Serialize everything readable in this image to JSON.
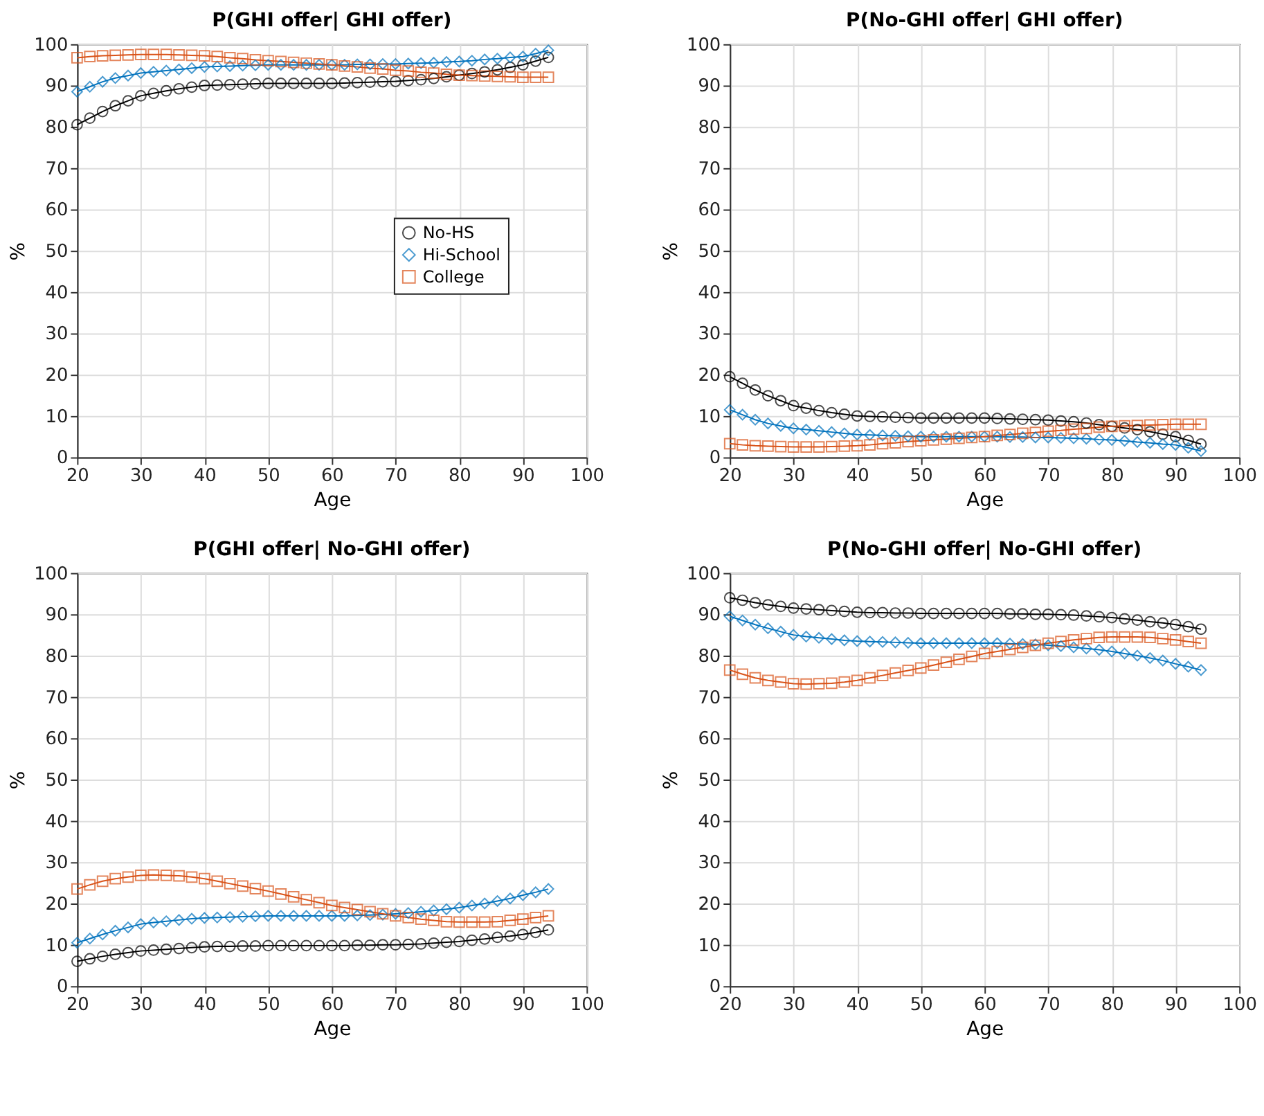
{
  "chart_data": [
    {
      "type": "line",
      "title": "P(GHI offer| GHI offer)",
      "xlabel": "Age",
      "ylabel": "%",
      "xlim": [
        20,
        100
      ],
      "xticks": [
        20,
        30,
        40,
        50,
        60,
        70,
        80,
        90,
        100
      ],
      "ylim": [
        0,
        100
      ],
      "yticks": [
        0,
        10,
        20,
        30,
        40,
        50,
        60,
        70,
        80,
        90,
        100
      ],
      "grid": true,
      "legend": "right",
      "line_style": "solid",
      "x": [
        20,
        22,
        24,
        26,
        28,
        30,
        32,
        34,
        36,
        38,
        40,
        42,
        44,
        46,
        48,
        50,
        52,
        54,
        56,
        58,
        60,
        62,
        64,
        66,
        68,
        70,
        72,
        74,
        76,
        78,
        80,
        82,
        84,
        86,
        88,
        90,
        92,
        94
      ],
      "series": [
        {
          "name": "No-HS",
          "color": "#000000",
          "marker": "circle",
          "values": [
            80.5,
            82.1,
            83.7,
            85.1,
            86.3,
            87.5,
            88.1,
            88.7,
            89.2,
            89.6,
            90,
            90.1,
            90.2,
            90.3,
            90.4,
            90.5,
            90.5,
            90.5,
            90.5,
            90.5,
            90.5,
            90.6,
            90.7,
            90.8,
            90.9,
            91,
            91.2,
            91.4,
            91.7,
            92.1,
            92.5,
            92.9,
            93.3,
            93.8,
            94.4,
            95,
            95.9,
            96.8
          ]
        },
        {
          "name": "Hi-School",
          "color": "#0072bd",
          "marker": "diamond",
          "values": [
            88.5,
            89.7,
            90.9,
            91.8,
            92.4,
            93,
            93.3,
            93.6,
            93.9,
            94.2,
            94.5,
            94.6,
            94.7,
            94.8,
            94.9,
            95,
            95,
            95,
            95,
            95,
            95,
            95,
            95.1,
            95.1,
            95.2,
            95.2,
            95.3,
            95.4,
            95.5,
            95.7,
            95.8,
            96,
            96.3,
            96.5,
            96.8,
            97,
            97.7,
            98.5
          ]
        },
        {
          "name": "College",
          "color": "#d95319",
          "marker": "square",
          "values": [
            96.7,
            97,
            97.2,
            97.3,
            97.4,
            97.5,
            97.5,
            97.5,
            97.4,
            97.3,
            97.2,
            97,
            96.7,
            96.5,
            96.2,
            96,
            95.8,
            95.6,
            95.4,
            95.2,
            95,
            94.7,
            94.5,
            94.2,
            94,
            93.7,
            93.5,
            93.2,
            93,
            92.7,
            92.5,
            92.4,
            92.3,
            92.2,
            92.1,
            92,
            92,
            92
          ]
        }
      ]
    },
    {
      "type": "line",
      "title": "P(No-GHI offer| GHI offer)",
      "xlabel": "Age",
      "ylabel": "%",
      "xlim": [
        20,
        100
      ],
      "xticks": [
        20,
        30,
        40,
        50,
        60,
        70,
        80,
        90,
        100
      ],
      "ylim": [
        0,
        100
      ],
      "yticks": [
        0,
        10,
        20,
        30,
        40,
        50,
        60,
        70,
        80,
        90,
        100
      ],
      "grid": true,
      "legend": false,
      "line_style": "solid",
      "x": [
        20,
        22,
        24,
        26,
        28,
        30,
        32,
        34,
        36,
        38,
        40,
        42,
        44,
        46,
        48,
        50,
        52,
        54,
        56,
        58,
        60,
        62,
        64,
        66,
        68,
        70,
        72,
        74,
        76,
        78,
        80,
        82,
        84,
        86,
        88,
        90,
        92,
        94
      ],
      "series": [
        {
          "color": "#000000",
          "marker": "circle",
          "values": [
            19.5,
            17.9,
            16.3,
            14.9,
            13.7,
            12.5,
            11.9,
            11.3,
            10.8,
            10.4,
            10,
            9.9,
            9.8,
            9.7,
            9.6,
            9.5,
            9.5,
            9.5,
            9.5,
            9.5,
            9.5,
            9.4,
            9.3,
            9.2,
            9.1,
            9,
            8.8,
            8.6,
            8.3,
            7.9,
            7.5,
            7.1,
            6.7,
            6.2,
            5.6,
            5,
            4.1,
            3.2
          ]
        },
        {
          "color": "#0072bd",
          "marker": "diamond",
          "values": [
            11.5,
            10.3,
            9.1,
            8.2,
            7.6,
            7,
            6.7,
            6.4,
            6.1,
            5.8,
            5.5,
            5.4,
            5.3,
            5.2,
            5.1,
            5,
            5,
            5,
            5,
            5,
            5,
            5,
            4.9,
            4.9,
            4.8,
            4.8,
            4.7,
            4.6,
            4.5,
            4.3,
            4.2,
            4,
            3.7,
            3.5,
            3.2,
            3,
            2.3,
            1.5
          ]
        },
        {
          "color": "#d95319",
          "marker": "square",
          "values": [
            3.3,
            3,
            2.8,
            2.7,
            2.6,
            2.5,
            2.5,
            2.5,
            2.6,
            2.7,
            2.8,
            3,
            3.3,
            3.5,
            3.8,
            4,
            4.2,
            4.4,
            4.6,
            4.8,
            5,
            5.3,
            5.5,
            5.8,
            6,
            6.3,
            6.5,
            6.8,
            7,
            7.3,
            7.5,
            7.6,
            7.7,
            7.8,
            7.9,
            8,
            8,
            8
          ]
        }
      ]
    },
    {
      "type": "line",
      "title": "P(GHI offer| No-GHI offer)",
      "xlabel": "Age",
      "ylabel": "%",
      "xlim": [
        20,
        100
      ],
      "xticks": [
        20,
        30,
        40,
        50,
        60,
        70,
        80,
        90,
        100
      ],
      "ylim": [
        0,
        100
      ],
      "yticks": [
        0,
        10,
        20,
        30,
        40,
        50,
        60,
        70,
        80,
        90,
        100
      ],
      "grid": true,
      "legend": false,
      "line_style": "solid",
      "x": [
        20,
        22,
        24,
        26,
        28,
        30,
        32,
        34,
        36,
        38,
        40,
        42,
        44,
        46,
        48,
        50,
        52,
        54,
        56,
        58,
        60,
        62,
        64,
        66,
        68,
        70,
        72,
        74,
        76,
        78,
        80,
        82,
        84,
        86,
        88,
        90,
        92,
        94
      ],
      "series": [
        {
          "color": "#000000",
          "marker": "circle",
          "values": [
            6,
            6.6,
            7.2,
            7.7,
            8.1,
            8.5,
            8.7,
            8.9,
            9.1,
            9.3,
            9.5,
            9.6,
            9.6,
            9.7,
            9.7,
            9.8,
            9.8,
            9.8,
            9.8,
            9.8,
            9.8,
            9.8,
            9.9,
            9.9,
            10,
            10,
            10.1,
            10.2,
            10.4,
            10.6,
            10.8,
            11.1,
            11.4,
            11.8,
            12.1,
            12.5,
            13,
            13.6
          ]
        },
        {
          "color": "#0072bd",
          "marker": "diamond",
          "values": [
            10.5,
            11.5,
            12.5,
            13.4,
            14.2,
            15,
            15.4,
            15.7,
            16,
            16.3,
            16.5,
            16.6,
            16.7,
            16.8,
            16.9,
            17,
            17,
            17,
            17,
            17,
            17,
            17,
            17.1,
            17.2,
            17.3,
            17.5,
            17.7,
            18,
            18.3,
            18.6,
            19,
            19.5,
            20,
            20.6,
            21.2,
            22,
            22.7,
            23.5
          ]
        },
        {
          "color": "#d95319",
          "marker": "square",
          "values": [
            23.5,
            24.5,
            25.4,
            26,
            26.4,
            26.8,
            26.9,
            26.8,
            26.7,
            26.4,
            26,
            25.4,
            24.8,
            24.2,
            23.6,
            23,
            22.3,
            21.6,
            20.9,
            20.2,
            19.5,
            19,
            18.5,
            18,
            17.5,
            17,
            16.6,
            16.2,
            15.9,
            15.6,
            15.5,
            15.5,
            15.5,
            15.6,
            15.9,
            16.2,
            16.6,
            17
          ]
        }
      ]
    },
    {
      "type": "line",
      "title": "P(No-GHI offer| No-GHI offer)",
      "xlabel": "Age",
      "ylabel": "%",
      "xlim": [
        20,
        100
      ],
      "xticks": [
        20,
        30,
        40,
        50,
        60,
        70,
        80,
        90,
        100
      ],
      "ylim": [
        0,
        100
      ],
      "yticks": [
        0,
        10,
        20,
        30,
        40,
        50,
        60,
        70,
        80,
        90,
        100
      ],
      "grid": true,
      "legend": false,
      "line_style": "solid",
      "x": [
        20,
        22,
        24,
        26,
        28,
        30,
        32,
        34,
        36,
        38,
        40,
        42,
        44,
        46,
        48,
        50,
        52,
        54,
        56,
        58,
        60,
        62,
        64,
        66,
        68,
        70,
        72,
        74,
        76,
        78,
        80,
        82,
        84,
        86,
        88,
        90,
        92,
        94
      ],
      "series": [
        {
          "color": "#000000",
          "marker": "circle",
          "values": [
            94,
            93.4,
            92.8,
            92.3,
            91.9,
            91.5,
            91.3,
            91.1,
            90.9,
            90.7,
            90.5,
            90.4,
            90.4,
            90.3,
            90.3,
            90.2,
            90.2,
            90.2,
            90.2,
            90.2,
            90.2,
            90.2,
            90.1,
            90.1,
            90,
            90,
            89.9,
            89.8,
            89.6,
            89.4,
            89.2,
            88.9,
            88.6,
            88.2,
            87.9,
            87.5,
            87,
            86.4
          ]
        },
        {
          "color": "#0072bd",
          "marker": "diamond",
          "values": [
            89.5,
            88.5,
            87.5,
            86.6,
            85.8,
            85,
            84.6,
            84.3,
            84,
            83.7,
            83.5,
            83.4,
            83.3,
            83.2,
            83.1,
            83,
            83,
            83,
            83,
            83,
            83,
            83,
            82.9,
            82.8,
            82.7,
            82.5,
            82.3,
            82,
            81.7,
            81.4,
            81,
            80.5,
            80,
            79.4,
            78.8,
            78,
            77.3,
            76.5
          ]
        },
        {
          "color": "#d95319",
          "marker": "square",
          "values": [
            76.5,
            75.5,
            74.6,
            74,
            73.6,
            73.2,
            73.1,
            73.2,
            73.3,
            73.6,
            74,
            74.6,
            75.2,
            75.8,
            76.4,
            77,
            77.7,
            78.4,
            79.1,
            79.8,
            80.5,
            81,
            81.5,
            82,
            82.5,
            83,
            83.4,
            83.8,
            84.1,
            84.4,
            84.5,
            84.5,
            84.5,
            84.4,
            84.1,
            83.8,
            83.4,
            83
          ]
        }
      ]
    }
  ]
}
